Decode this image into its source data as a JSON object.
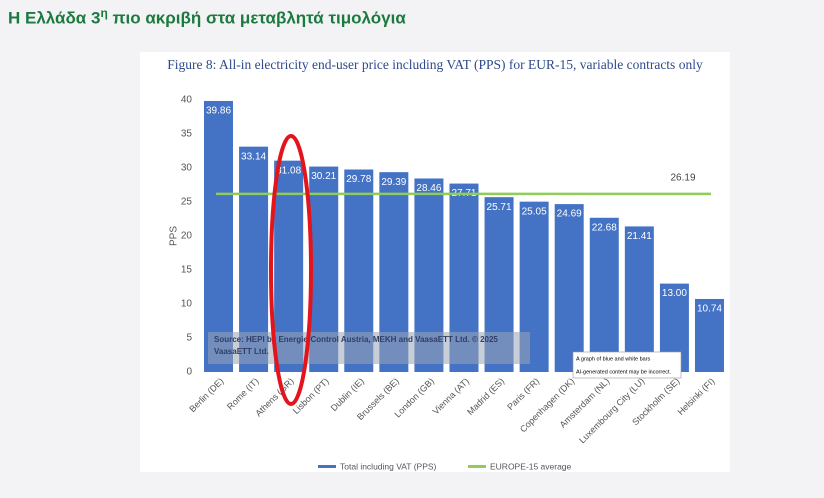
{
  "heading": {
    "pre": "Η Ελλάδα 3",
    "sup": "η",
    "post": " πιο ακριβή στα μεταβλητά τιμολόγια"
  },
  "chart_data": {
    "type": "bar",
    "title": "Figure 8: All-in electricity end-user price including VAT (PPS) for EUR-15, variable contracts only",
    "y_label": "PPS",
    "categories": [
      "Berlin (DE)",
      "Rome (IT)",
      "Athens (GR)",
      "Lisbon (PT)",
      "Dublin (IE)",
      "Brussels (BE)",
      "London (GB)",
      "Vienna (AT)",
      "Madrid (ES)",
      "Paris (FR)",
      "Copenhagen (DK)",
      "Amsterdam (NL)",
      "Luxembourg City (LU)",
      "Stockholm (SE)",
      "Helsinki (FI)"
    ],
    "series": [
      {
        "name": "Total including VAT (PPS)",
        "color": "#4472c4",
        "values": [
          39.86,
          33.14,
          31.08,
          30.21,
          29.78,
          29.39,
          28.46,
          27.71,
          25.71,
          25.05,
          24.69,
          22.68,
          21.41,
          13.0,
          10.74
        ],
        "value_labels": [
          "39.86",
          "33.14",
          "31.08",
          "30.21",
          "29.78",
          "29.39",
          "28.46",
          "27.71",
          "25.71",
          "25.05",
          "24.69",
          "22.68",
          "21.41",
          "13.00",
          "10.74"
        ]
      }
    ],
    "average": {
      "name": "EUROPE-15 average",
      "color": "#8fcc5a",
      "value": 26.19
    },
    "ylim": [
      0,
      40
    ],
    "yticks": [
      0,
      5,
      10,
      15,
      20,
      25,
      30,
      35,
      40
    ],
    "source": "Source: HEPI by Energie-Control Austria, MEKH and VaasaETT Ltd. © 2025 VaasaETT Ltd.",
    "tooltip": [
      "A graph of blue and white bars",
      "AI-generated content may be incorrect."
    ]
  }
}
